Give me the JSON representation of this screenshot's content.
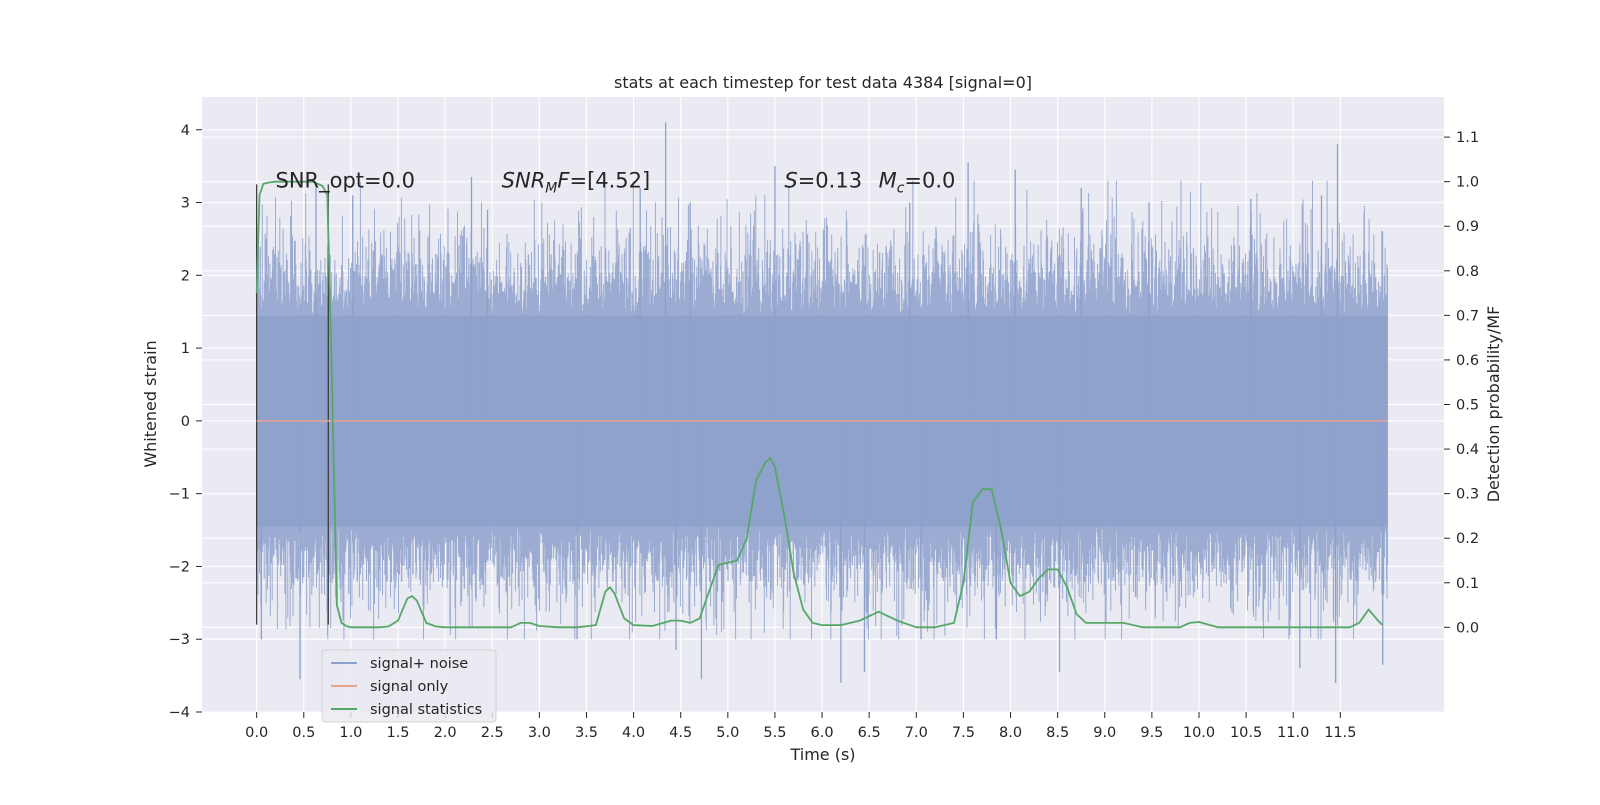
{
  "chart_data": {
    "type": "line",
    "title": "stats at each timestep for test data 4384 [signal=0]",
    "xlabel": "Time (s)",
    "ylabel": "Whitened strain",
    "ylabel_right": "Detection probability/MF",
    "xlim": [
      -0.58,
      12.6
    ],
    "ylim": [
      -4.0,
      4.45
    ],
    "ylim_right": [
      -0.19,
      1.19
    ],
    "x_ticks": [
      0.0,
      0.5,
      1.0,
      1.5,
      2.0,
      2.5,
      3.0,
      3.5,
      4.0,
      4.5,
      5.0,
      5.5,
      6.0,
      6.5,
      7.0,
      7.5,
      8.0,
      8.5,
      9.0,
      9.5,
      10.0,
      10.5,
      11.0,
      11.5
    ],
    "x_tick_labels": [
      "0.0",
      "0.5",
      "1.0",
      "1.5",
      "2.0",
      "2.5",
      "3.0",
      "3.5",
      "4.0",
      "4.5",
      "5.0",
      "5.5",
      "6.0",
      "6.5",
      "7.0",
      "7.5",
      "8.0",
      "8.5",
      "9.0",
      "9.5",
      "10.0",
      "10.5",
      "11.0",
      "11.5"
    ],
    "y_ticks": [
      -4,
      -3,
      -2,
      -1,
      0,
      1,
      2,
      3,
      4
    ],
    "y_tick_labels": [
      "−4",
      "−3",
      "−2",
      "−1",
      "0",
      "1",
      "2",
      "3",
      "4"
    ],
    "y_ticks_right": [
      0.0,
      0.1,
      0.2,
      0.3,
      0.4,
      0.5,
      0.6,
      0.7,
      0.8,
      0.9,
      1.0,
      1.1
    ],
    "y_tick_labels_right": [
      "0.0",
      "0.1",
      "0.2",
      "0.3",
      "0.4",
      "0.5",
      "0.6",
      "0.7",
      "0.8",
      "0.9",
      "1.0",
      "1.1"
    ],
    "grid": true,
    "legend_position": "bottom-left",
    "annotations": [
      {
        "text": "SNR_opt=0.0",
        "x": 0.2,
        "y": 3.3
      },
      {
        "text": "SNR_MF=[4.52]",
        "x": 2.6,
        "y": 3.3
      },
      {
        "text": "S=0.13",
        "x": 5.6,
        "y": 3.3
      },
      {
        "text": "M_c=0.0",
        "x": 6.6,
        "y": 3.3
      }
    ],
    "vertical_markers": [
      {
        "x": 0.0,
        "y_range": [
          -2.8,
          3.25
        ]
      },
      {
        "x": 0.76,
        "y_range": [
          -2.8,
          3.25
        ]
      }
    ],
    "series": [
      {
        "name": "signal+ noise",
        "axis": "left",
        "color": "#8da0cb",
        "description_range": [
          -3.6,
          4.1
        ],
        "x_range": [
          0.0,
          12.0
        ],
        "spikes": [
          {
            "x": 0.05,
            "y": -3.0
          },
          {
            "x": 0.46,
            "y": -3.55
          },
          {
            "x": 0.63,
            "y": 3.25
          },
          {
            "x": 1.02,
            "y": 3.1
          },
          {
            "x": 2.28,
            "y": 3.35
          },
          {
            "x": 2.45,
            "y": 2.9
          },
          {
            "x": 3.4,
            "y": -3.0
          },
          {
            "x": 4.07,
            "y": 3.2
          },
          {
            "x": 4.34,
            "y": 4.1
          },
          {
            "x": 4.45,
            "y": -3.15
          },
          {
            "x": 4.6,
            "y": 3.0
          },
          {
            "x": 4.72,
            "y": -3.55
          },
          {
            "x": 5.5,
            "y": 3.5
          },
          {
            "x": 6.2,
            "y": -3.6
          },
          {
            "x": 6.45,
            "y": -3.45
          },
          {
            "x": 6.93,
            "y": 3.0
          },
          {
            "x": 7.05,
            "y": -3.0
          },
          {
            "x": 7.55,
            "y": 3.55
          },
          {
            "x": 7.85,
            "y": -3.0
          },
          {
            "x": 8.05,
            "y": 3.45
          },
          {
            "x": 8.52,
            "y": -3.45
          },
          {
            "x": 8.75,
            "y": 3.2
          },
          {
            "x": 9.47,
            "y": 3.0
          },
          {
            "x": 10.55,
            "y": 3.05
          },
          {
            "x": 11.07,
            "y": -3.4
          },
          {
            "x": 11.3,
            "y": 3.1
          },
          {
            "x": 11.45,
            "y": -3.6
          },
          {
            "x": 11.47,
            "y": 3.8
          },
          {
            "x": 11.95,
            "y": -3.35
          }
        ]
      },
      {
        "name": "signal only",
        "axis": "left",
        "color": "#e8a48f",
        "x": [
          0.0,
          12.0
        ],
        "y": [
          0.0,
          0.0
        ]
      },
      {
        "name": "signal statistics",
        "axis": "right",
        "color": "#55a868",
        "x": [
          0.0,
          0.03,
          0.07,
          0.12,
          0.2,
          0.3,
          0.45,
          0.6,
          0.7,
          0.75,
          0.8,
          0.85,
          0.9,
          0.95,
          1.0,
          1.2,
          1.3,
          1.4,
          1.5,
          1.6,
          1.65,
          1.7,
          1.8,
          1.9,
          2.0,
          2.2,
          2.5,
          2.7,
          2.8,
          2.9,
          3.0,
          3.2,
          3.4,
          3.6,
          3.7,
          3.75,
          3.8,
          3.9,
          4.0,
          4.2,
          4.4,
          4.5,
          4.6,
          4.7,
          4.8,
          4.9,
          5.0,
          5.1,
          5.2,
          5.3,
          5.4,
          5.45,
          5.5,
          5.6,
          5.7,
          5.8,
          5.9,
          6.0,
          6.2,
          6.4,
          6.6,
          6.8,
          7.0,
          7.2,
          7.4,
          7.5,
          7.6,
          7.7,
          7.8,
          7.9,
          8.0,
          8.1,
          8.2,
          8.3,
          8.4,
          8.5,
          8.6,
          8.7,
          8.8,
          9.0,
          9.2,
          9.4,
          9.6,
          9.8,
          9.9,
          10.0,
          10.2,
          10.5,
          10.8,
          11.0,
          11.2,
          11.4,
          11.6,
          11.7,
          11.8,
          11.9,
          11.95
        ],
        "y": [
          0.75,
          0.97,
          0.995,
          0.998,
          1.0,
          1.0,
          1.0,
          1.0,
          0.99,
          0.97,
          0.55,
          0.05,
          0.01,
          0.003,
          0.0,
          0.0,
          0.0,
          0.002,
          0.015,
          0.065,
          0.07,
          0.06,
          0.01,
          0.002,
          0.0,
          0.0,
          0.0,
          0.0,
          0.01,
          0.01,
          0.003,
          0.0,
          0.0,
          0.005,
          0.08,
          0.09,
          0.075,
          0.02,
          0.005,
          0.003,
          0.015,
          0.015,
          0.01,
          0.02,
          0.08,
          0.14,
          0.145,
          0.15,
          0.2,
          0.33,
          0.37,
          0.38,
          0.36,
          0.25,
          0.12,
          0.04,
          0.01,
          0.005,
          0.005,
          0.015,
          0.035,
          0.015,
          0.0,
          0.0,
          0.01,
          0.1,
          0.28,
          0.31,
          0.31,
          0.22,
          0.1,
          0.07,
          0.08,
          0.11,
          0.13,
          0.13,
          0.09,
          0.03,
          0.01,
          0.01,
          0.01,
          0.0,
          0.0,
          0.0,
          0.01,
          0.012,
          0.0,
          0.0,
          0.0,
          0.0,
          0.0,
          0.0,
          0.0,
          0.01,
          0.04,
          0.015,
          0.005
        ]
      }
    ]
  }
}
